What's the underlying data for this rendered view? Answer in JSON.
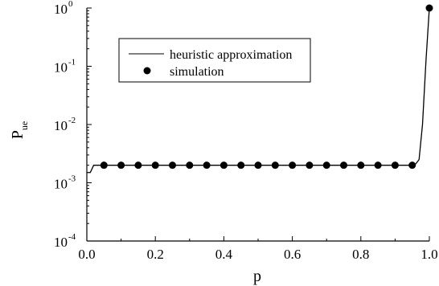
{
  "chart_data": {
    "type": "line",
    "title": "",
    "xlabel": "p",
    "ylabel": {
      "base": "P",
      "sub": "ue"
    },
    "xlim": [
      0.0,
      1.0
    ],
    "ylim": [
      0.0001,
      1
    ],
    "yscale": "log",
    "grid": false,
    "legend_position": "top-left",
    "x_ticks": [
      "0.0",
      "0.2",
      "0.4",
      "0.6",
      "0.8",
      "1.0"
    ],
    "y_ticks": [
      {
        "value": 0.0001,
        "base": "10",
        "exp": "-4"
      },
      {
        "value": 0.001,
        "base": "10",
        "exp": "-3"
      },
      {
        "value": 0.01,
        "base": "10",
        "exp": "-2"
      },
      {
        "value": 0.1,
        "base": "10",
        "exp": "-1"
      },
      {
        "value": 1,
        "base": "10",
        "exp": "0"
      }
    ],
    "series": [
      {
        "name": "heuristic approximation",
        "style": "line",
        "color": "#000000",
        "x": [
          0.0,
          0.01,
          0.02,
          0.05,
          0.1,
          0.2,
          0.3,
          0.4,
          0.5,
          0.6,
          0.7,
          0.8,
          0.9,
          0.95,
          0.96,
          0.97,
          0.98,
          0.99,
          1.0
        ],
        "y": [
          0.0015,
          0.0015,
          0.002,
          0.002,
          0.002,
          0.002,
          0.002,
          0.002,
          0.002,
          0.002,
          0.002,
          0.002,
          0.002,
          0.002,
          0.0021,
          0.0025,
          0.01,
          0.12,
          1
        ]
      },
      {
        "name": "simulation",
        "style": "markers",
        "color": "#000000",
        "x": [
          0.05,
          0.1,
          0.15,
          0.2,
          0.25,
          0.3,
          0.35,
          0.4,
          0.45,
          0.5,
          0.55,
          0.6,
          0.65,
          0.7,
          0.75,
          0.8,
          0.85,
          0.9,
          0.95,
          1.0
        ],
        "y": [
          0.002,
          0.002,
          0.002,
          0.002,
          0.002,
          0.002,
          0.002,
          0.002,
          0.002,
          0.002,
          0.002,
          0.002,
          0.002,
          0.002,
          0.002,
          0.002,
          0.002,
          0.002,
          0.002,
          1
        ]
      }
    ]
  }
}
